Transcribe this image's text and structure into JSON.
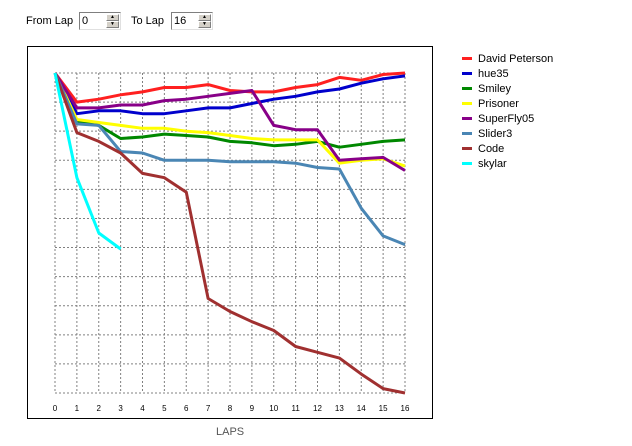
{
  "controls": {
    "from_label": "From Lap",
    "from_value": "0",
    "to_label": "To Lap",
    "to_value": "16"
  },
  "chart_data": {
    "type": "line",
    "xlabel": "LAPS",
    "ylabel": "",
    "title": "",
    "x_ticks": [
      "0",
      "1",
      "2",
      "3",
      "4",
      "5",
      "6",
      "7",
      "8",
      "9",
      "10",
      "11",
      "12",
      "13",
      "14",
      "15",
      "16"
    ],
    "xlim": [
      0,
      16
    ],
    "ylim": [
      -11,
      0
    ],
    "grid": true,
    "legend_position": "right",
    "series": [
      {
        "name": "David Peterson",
        "color": "#ff2020",
        "x": [
          0,
          1,
          2,
          3,
          4,
          5,
          6,
          7,
          8,
          9,
          10,
          11,
          12,
          13,
          14,
          15,
          16
        ],
        "y": [
          0,
          -1.0,
          -0.9,
          -0.75,
          -0.65,
          -0.5,
          -0.5,
          -0.4,
          -0.6,
          -0.65,
          -0.65,
          -0.5,
          -0.4,
          -0.15,
          -0.25,
          -0.05,
          0
        ]
      },
      {
        "name": "hue35",
        "color": "#0000cc",
        "x": [
          0,
          1,
          2,
          3,
          4,
          5,
          6,
          7,
          8,
          9,
          10,
          11,
          12,
          13,
          14,
          15,
          16
        ],
        "y": [
          0,
          -1.4,
          -1.3,
          -1.3,
          -1.4,
          -1.4,
          -1.3,
          -1.2,
          -1.2,
          -1.05,
          -0.9,
          -0.8,
          -0.65,
          -0.55,
          -0.35,
          -0.2,
          -0.1
        ]
      },
      {
        "name": "Smiley",
        "color": "#008800",
        "x": [
          0,
          1,
          2,
          3,
          4,
          5,
          6,
          7,
          8,
          9,
          10,
          11,
          12,
          13,
          14,
          15,
          16
        ],
        "y": [
          0,
          -1.65,
          -1.8,
          -2.25,
          -2.2,
          -2.1,
          -2.15,
          -2.2,
          -2.35,
          -2.4,
          -2.5,
          -2.45,
          -2.35,
          -2.55,
          -2.45,
          -2.35,
          -2.3
        ]
      },
      {
        "name": "Prisoner",
        "color": "#ffff00",
        "x": [
          0,
          1,
          2,
          3,
          4,
          5,
          6,
          7,
          8,
          9,
          10,
          11,
          12,
          13,
          14,
          15,
          16
        ],
        "y": [
          0,
          -1.6,
          -1.7,
          -1.8,
          -1.9,
          -1.9,
          -2.0,
          -2.05,
          -2.15,
          -2.25,
          -2.3,
          -2.3,
          -2.3,
          -3.1,
          -3.0,
          -2.95,
          -3.2
        ]
      },
      {
        "name": "SuperFly05",
        "color": "#880088",
        "x": [
          0,
          1,
          2,
          3,
          4,
          5,
          6,
          7,
          8,
          9,
          10,
          11,
          12,
          13,
          14,
          15,
          16
        ],
        "y": [
          0,
          -1.2,
          -1.2,
          -1.1,
          -1.1,
          -0.95,
          -0.9,
          -0.8,
          -0.7,
          -0.6,
          -1.8,
          -1.95,
          -1.95,
          -3.0,
          -2.95,
          -2.9,
          -3.35
        ]
      },
      {
        "name": "Slider3",
        "color": "#4a86b4",
        "x": [
          0,
          1,
          2,
          3,
          4,
          5,
          6,
          7,
          8,
          9,
          10,
          11,
          12,
          13,
          14,
          15,
          16
        ],
        "y": [
          0,
          -1.75,
          -1.8,
          -2.7,
          -2.75,
          -3.0,
          -3.0,
          -3.0,
          -3.05,
          -3.05,
          -3.05,
          -3.1,
          -3.25,
          -3.3,
          -4.65,
          -5.6,
          -5.9
        ]
      },
      {
        "name": "Code",
        "color": "#a03030",
        "x": [
          0,
          1,
          2,
          3,
          4,
          5,
          6,
          7,
          8,
          9,
          10,
          11,
          12,
          13,
          14,
          15,
          16
        ],
        "y": [
          0,
          -2.05,
          -2.35,
          -2.75,
          -3.45,
          -3.6,
          -4.1,
          -7.75,
          -8.2,
          -8.55,
          -8.85,
          -9.4,
          -9.6,
          -9.8,
          -10.35,
          -10.85,
          -11.0
        ]
      },
      {
        "name": "skylar",
        "color": "#00ffff",
        "x": [
          0,
          1,
          2,
          3
        ],
        "y": [
          0,
          -3.6,
          -5.5,
          -6.05
        ]
      }
    ]
  }
}
